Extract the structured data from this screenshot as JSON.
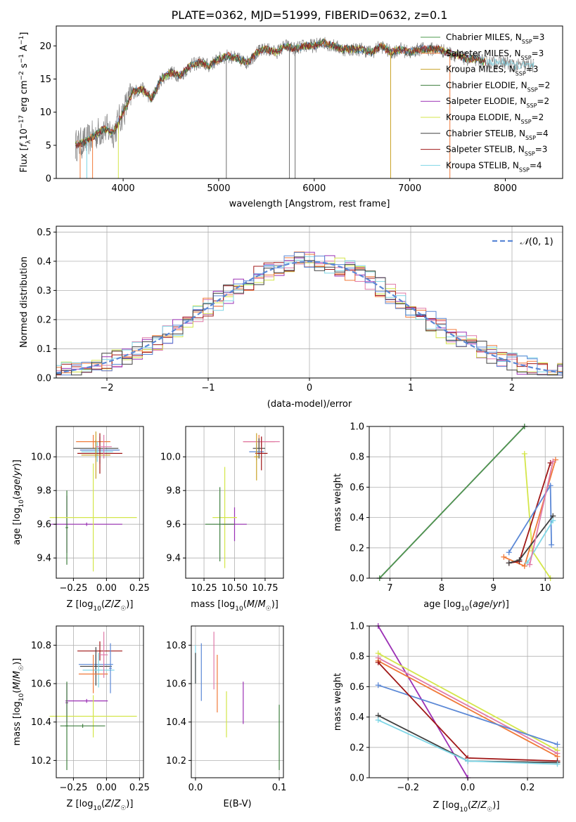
{
  "title": "PLATE=0362, MJD=51999, FIBERID=0632, z=0.1",
  "series_names": [
    "Chabrier MILES",
    "Salpeter MILES",
    "Kroupa MILES",
    "Chabrier ELODIE",
    "Salpeter ELODIE",
    "Kroupa ELODIE",
    "Chabrier STELIB",
    "Salpeter STELIB",
    "Kroupa STELIB"
  ],
  "colors": [
    "#4c9a4c",
    "#f07a3a",
    "#c9a227",
    "#3f7f3f",
    "#9b30b5",
    "#d4e64a",
    "#404040",
    "#a01818",
    "#7fd6e6",
    "#5b88d6",
    "#e07aa8"
  ],
  "legend_texts": [
    "Chabrier MILES, N",
    "Salpeter MILES, N",
    "Kroupa MILES, N",
    "Chabrier ELODIE, N",
    "Salpeter ELODIE, N",
    "Kroupa ELODIE, N",
    "Chabrier STELIB, N",
    "Salpeter STELIB, N",
    "Kroupa STELIB, N"
  ],
  "legend_sub": "SSP",
  "legend_nssp": [
    "=3",
    "=3",
    "=3",
    "=2",
    "=2",
    "=2",
    "=4",
    "=3",
    "=4"
  ],
  "chart_data": [
    {
      "id": "spectrum",
      "type": "line",
      "xlabel": "wavelength [Angstrom, rest frame]",
      "ylabel": "Flux [f_λ10^-17 erg cm^-2 s^-1 A^-1]",
      "xlim": [
        3300,
        8600
      ],
      "ylim": [
        0,
        23
      ],
      "xticks": [
        4000,
        5000,
        6000,
        7000,
        8000
      ],
      "yticks": [
        0,
        5,
        10,
        15,
        20
      ],
      "spectrum_x": [
        3500,
        3600,
        3700,
        3800,
        3900,
        4000,
        4100,
        4200,
        4300,
        4400,
        4500,
        4600,
        4700,
        4800,
        4900,
        5000,
        5100,
        5200,
        5300,
        5400,
        5500,
        5600,
        5700,
        5800,
        5900,
        6000,
        6100,
        6200,
        6300,
        6400,
        6500,
        6600,
        6700,
        6800,
        6900,
        7000,
        7100,
        7200,
        7300,
        7400,
        7500,
        7600,
        7700,
        7800,
        7900,
        8000,
        8100,
        8200,
        8300
      ],
      "spectrum_y": [
        5,
        5.5,
        6.5,
        7.5,
        7,
        10,
        13,
        13.5,
        12,
        15,
        16,
        15.5,
        17,
        17.5,
        17,
        18,
        18.5,
        18,
        17.5,
        19,
        19.5,
        19,
        20,
        19.5,
        20,
        20,
        20.5,
        20,
        19.5,
        19.5,
        19.5,
        19,
        20,
        19,
        19.5,
        19,
        19.5,
        19.5,
        19.5,
        19,
        18.5,
        18,
        18,
        17.5,
        17.5,
        17.5,
        17,
        17,
        17
      ],
      "absorption_spikes": [
        3550,
        3620,
        3680,
        3950,
        5080,
        5740,
        5800,
        6800,
        7420
      ]
    },
    {
      "id": "residual_histogram",
      "type": "histogram",
      "xlabel": "(data-model)/error",
      "ylabel": "Normed distribution",
      "xlim": [
        -2.5,
        2.5
      ],
      "ylim": [
        0,
        0.52
      ],
      "xticks": [
        -2,
        -1,
        0,
        1,
        2
      ],
      "xtick_labels": [
        "−2",
        "−1",
        "0",
        "1",
        "2"
      ],
      "yticks": [
        0.0,
        0.1,
        0.2,
        0.3,
        0.4,
        0.5
      ],
      "ytick_labels": [
        "0.0",
        "0.1",
        "0.2",
        "0.3",
        "0.4",
        "0.5"
      ],
      "legend_label": "N(0,1)",
      "bin_width": 0.1
    },
    {
      "id": "age_vs_Z",
      "type": "errorbar",
      "xlabel": "Z [log10(Z/Z☉)]",
      "ylabel": "age [log10(age/yr)]",
      "xlim": [
        -0.38,
        0.28
      ],
      "ylim": [
        9.28,
        10.18
      ],
      "xticks": [
        -0.25,
        0.0,
        0.25
      ],
      "xtick_labels": [
        "−0.25",
        "0.00",
        "0.25"
      ],
      "yticks": [
        9.4,
        9.6,
        9.8,
        10.0
      ],
      "ytick_labels": [
        "9.4",
        "9.6",
        "9.8",
        "10.0"
      ],
      "points": [
        {
          "x": -0.1,
          "y": 10.09,
          "xerr": 0.13,
          "yerr": 0.04,
          "c": 1
        },
        {
          "x": -0.08,
          "y": 10.05,
          "xerr": 0.17,
          "yerr": 0.05,
          "c": 6
        },
        {
          "x": -0.05,
          "y": 10.04,
          "xerr": 0.15,
          "yerr": 0.08,
          "c": 9
        },
        {
          "x": -0.07,
          "y": 10.03,
          "xerr": 0.12,
          "yerr": 0.06,
          "c": 8
        },
        {
          "x": -0.05,
          "y": 10.02,
          "xerr": 0.17,
          "yerr": 0.12,
          "c": 7
        },
        {
          "x": -0.08,
          "y": 10.01,
          "xerr": 0.11,
          "yerr": 0.14,
          "c": 2
        },
        {
          "x": -0.02,
          "y": 10.06,
          "xerr": 0.06,
          "yerr": 0.07,
          "c": 10
        },
        {
          "x": -0.3,
          "y": 9.6,
          "xerr": 0.01,
          "yerr": 0.17,
          "c": 4
        },
        {
          "x": -0.15,
          "y": 9.6,
          "xerr": 0.27,
          "yerr": 0.01,
          "c": 4
        },
        {
          "x": -0.3,
          "y": 9.58,
          "xerr": 0.01,
          "yerr": 0.22,
          "c": 3
        },
        {
          "x": -0.1,
          "y": 9.64,
          "xerr": 0.33,
          "yerr": 0.32,
          "c": 5
        }
      ]
    },
    {
      "id": "age_vs_mass",
      "type": "errorbar",
      "xlabel": "mass [log10(M/M☉)]",
      "ylabel": "",
      "xlim": [
        10.1,
        10.9
      ],
      "ylim": [
        9.28,
        10.18
      ],
      "xticks": [
        10.25,
        10.5,
        10.75
      ],
      "xtick_labels": [
        "10.25",
        "10.50",
        "10.75"
      ],
      "yticks": [
        9.4,
        9.6,
        9.8,
        10.0
      ],
      "ytick_labels": [
        "9.4",
        "9.6",
        "9.8",
        "10.0"
      ],
      "points": [
        {
          "x": 10.7,
          "y": 10.09,
          "xerr": 0.13,
          "yerr": 0.04,
          "c": 1
        },
        {
          "x": 10.72,
          "y": 10.09,
          "xerr": 0.15,
          "yerr": 0.03,
          "c": 10
        },
        {
          "x": 10.7,
          "y": 10.05,
          "xerr": 0.05,
          "yerr": 0.06,
          "c": 6
        },
        {
          "x": 10.68,
          "y": 10.03,
          "xerr": 0.06,
          "yerr": 0.05,
          "c": 9
        },
        {
          "x": 10.72,
          "y": 10.02,
          "xerr": 0.05,
          "yerr": 0.1,
          "c": 7
        },
        {
          "x": 10.68,
          "y": 10.0,
          "xerr": 0.02,
          "yerr": 0.14,
          "c": 2
        },
        {
          "x": 10.5,
          "y": 9.6,
          "xerr": 0.1,
          "yerr": 0.1,
          "c": 4
        },
        {
          "x": 10.42,
          "y": 9.64,
          "xerr": 0.1,
          "yerr": 0.3,
          "c": 5
        },
        {
          "x": 10.38,
          "y": 9.6,
          "xerr": 0.12,
          "yerr": 0.22,
          "c": 3
        }
      ]
    },
    {
      "id": "massweight_vs_age",
      "type": "line",
      "xlabel": "age [log10(age/yr)]",
      "ylabel": "mass weight",
      "xlim": [
        6.6,
        10.35
      ],
      "ylim": [
        0,
        1.0
      ],
      "xticks": [
        7,
        8,
        9,
        10
      ],
      "xtick_labels": [
        "7",
        "8",
        "9",
        "10"
      ],
      "yticks": [
        0.0,
        0.2,
        0.4,
        0.6,
        0.8,
        1.0
      ],
      "ytick_labels": [
        "0.0",
        "0.2",
        "0.4",
        "0.6",
        "0.8",
        "1.0"
      ],
      "series": [
        {
          "c": 4,
          "x": [
            6.8,
            9.6
          ],
          "y": [
            0.0,
            1.0
          ]
        },
        {
          "c": 0,
          "x": [
            6.8,
            9.6
          ],
          "y": [
            0.0,
            1.0
          ]
        },
        {
          "c": 5,
          "x": [
            9.6,
            9.75,
            10.1
          ],
          "y": [
            0.82,
            0.18,
            0.0
          ]
        },
        {
          "c": 1,
          "x": [
            9.2,
            9.6,
            10.2
          ],
          "y": [
            0.14,
            0.08,
            0.78
          ]
        },
        {
          "c": 7,
          "x": [
            9.3,
            9.5,
            10.1
          ],
          "y": [
            0.1,
            0.11,
            0.76
          ]
        },
        {
          "c": 9,
          "x": [
            9.3,
            10.1,
            10.12
          ],
          "y": [
            0.17,
            0.61,
            0.22
          ]
        },
        {
          "c": 6,
          "x": [
            9.3,
            9.5,
            10.15
          ],
          "y": [
            0.1,
            0.12,
            0.41
          ]
        },
        {
          "c": 8,
          "x": [
            9.65,
            10.15
          ],
          "y": [
            0.1,
            0.38
          ]
        },
        {
          "c": 10,
          "x": [
            9.7,
            10.15
          ],
          "y": [
            0.09,
            0.77
          ]
        }
      ]
    },
    {
      "id": "mass_vs_Z",
      "type": "errorbar",
      "xlabel": "Z [log10(Z/Z☉)]",
      "ylabel": "mass [log10(M/M☉)]",
      "xlim": [
        -0.38,
        0.28
      ],
      "ylim": [
        10.11,
        10.9
      ],
      "xticks": [
        -0.25,
        0.0,
        0.25
      ],
      "xtick_labels": [
        "−0.25",
        "0.00",
        "0.25"
      ],
      "yticks": [
        10.2,
        10.4,
        10.6,
        10.8
      ],
      "ytick_labels": [
        "10.2",
        "10.4",
        "10.6",
        "10.8"
      ],
      "points": [
        {
          "x": -0.05,
          "y": 10.77,
          "xerr": 0.17,
          "yerr": 0.05,
          "c": 7
        },
        {
          "x": -0.08,
          "y": 10.7,
          "xerr": 0.13,
          "yerr": 0.05,
          "c": 9
        },
        {
          "x": -0.08,
          "y": 10.69,
          "xerr": 0.12,
          "yerr": 0.1,
          "c": 6
        },
        {
          "x": -0.06,
          "y": 10.67,
          "xerr": 0.12,
          "yerr": 0.09,
          "c": 8
        },
        {
          "x": -0.1,
          "y": 10.65,
          "xerr": 0.11,
          "yerr": 0.1,
          "c": 1
        },
        {
          "x": -0.02,
          "y": 10.75,
          "xerr": 0.03,
          "yerr": 0.12,
          "c": 10
        },
        {
          "x": 0.03,
          "y": 10.68,
          "xerr": 0.01,
          "yerr": 0.13,
          "c": 9
        },
        {
          "x": -0.15,
          "y": 10.51,
          "xerr": 0.16,
          "yerr": 0.01,
          "c": 4
        },
        {
          "x": -0.3,
          "y": 10.5,
          "xerr": 0.01,
          "yerr": 0.1,
          "c": 4
        },
        {
          "x": -0.1,
          "y": 10.43,
          "xerr": 0.33,
          "yerr": 0.11,
          "c": 5
        },
        {
          "x": -0.18,
          "y": 10.38,
          "xerr": 0.17,
          "yerr": 0.01,
          "c": 3
        },
        {
          "x": -0.3,
          "y": 10.38,
          "xerr": 0.01,
          "yerr": 0.23,
          "c": 3
        }
      ]
    },
    {
      "id": "mass_vs_ebv",
      "type": "errorbar",
      "xlabel": "E(B-V)",
      "ylabel": "",
      "xlim": [
        -0.005,
        0.105
      ],
      "ylim": [
        10.11,
        10.9
      ],
      "xticks": [
        0.0,
        0.1
      ],
      "xtick_labels": [
        "0.0",
        "0.1"
      ],
      "yticks": [
        10.2,
        10.4,
        10.6,
        10.8
      ],
      "ytick_labels": [
        "10.2",
        "10.4",
        "10.6",
        "10.8"
      ],
      "points": [
        {
          "x": 0.0,
          "y": 10.7,
          "xerr": 0,
          "yerr": 0.1,
          "c": 8
        },
        {
          "x": 0.0,
          "y": 10.68,
          "xerr": 0,
          "yerr": 0.08,
          "c": 6
        },
        {
          "x": 0.007,
          "y": 10.66,
          "xerr": 0,
          "yerr": 0.15,
          "c": 9
        },
        {
          "x": 0.022,
          "y": 10.72,
          "xerr": 0,
          "yerr": 0.15,
          "c": 10
        },
        {
          "x": 0.026,
          "y": 10.6,
          "xerr": 0,
          "yerr": 0.15,
          "c": 1
        },
        {
          "x": 0.037,
          "y": 10.44,
          "xerr": 0,
          "yerr": 0.12,
          "c": 5
        },
        {
          "x": 0.057,
          "y": 10.5,
          "xerr": 0,
          "yerr": 0.11,
          "c": 4
        },
        {
          "x": 0.1,
          "y": 10.32,
          "xerr": 0,
          "yerr": 0.17,
          "c": 3
        }
      ]
    },
    {
      "id": "massweight_vs_Z",
      "type": "line",
      "xlabel": "Z [log10(Z/Z☉)]",
      "ylabel": "mass weight",
      "xlim": [
        -0.33,
        0.32
      ],
      "ylim": [
        0,
        1.0
      ],
      "xticks": [
        -0.2,
        0.0,
        0.2
      ],
      "xtick_labels": [
        "−0.2",
        "0.0",
        "0.2"
      ],
      "yticks": [
        0.0,
        0.2,
        0.4,
        0.6,
        0.8,
        1.0
      ],
      "ytick_labels": [
        "0.0",
        "0.2",
        "0.4",
        "0.6",
        "0.8",
        "1.0"
      ],
      "series": [
        {
          "c": 4,
          "x": [
            -0.3,
            0.0
          ],
          "y": [
            1.0,
            0.0
          ]
        },
        {
          "c": 5,
          "x": [
            -0.3,
            0.3
          ],
          "y": [
            0.82,
            0.18
          ]
        },
        {
          "c": 10,
          "x": [
            -0.3,
            0.3
          ],
          "y": [
            0.79,
            0.16
          ]
        },
        {
          "c": 1,
          "x": [
            -0.3,
            0.3
          ],
          "y": [
            0.77,
            0.14
          ]
        },
        {
          "c": 9,
          "x": [
            -0.3,
            0.3
          ],
          "y": [
            0.61,
            0.22
          ]
        },
        {
          "c": 7,
          "x": [
            -0.3,
            0.0,
            0.3
          ],
          "y": [
            0.76,
            0.13,
            0.11
          ]
        },
        {
          "c": 6,
          "x": [
            -0.3,
            0.0,
            0.3
          ],
          "y": [
            0.41,
            0.11,
            0.1
          ]
        },
        {
          "c": 8,
          "x": [
            -0.3,
            0.0,
            0.3
          ],
          "y": [
            0.38,
            0.11,
            0.09
          ]
        }
      ]
    }
  ]
}
